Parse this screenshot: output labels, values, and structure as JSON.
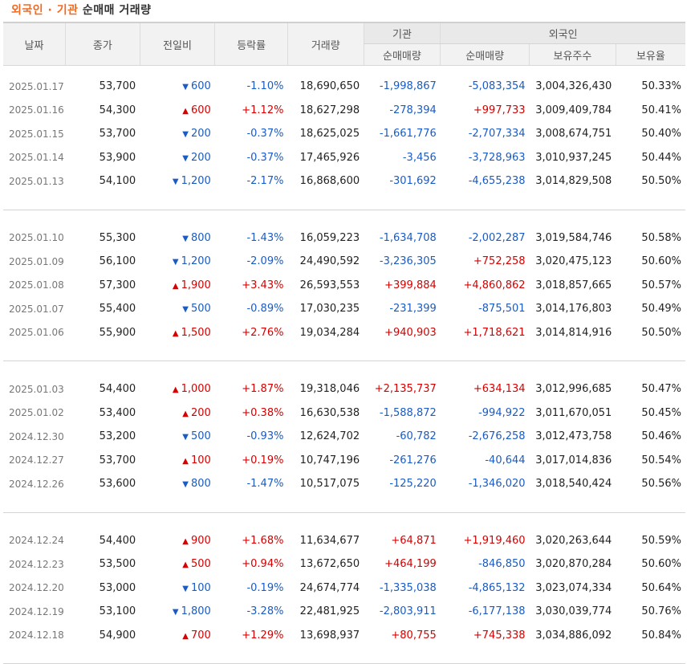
{
  "title": {
    "part1": "외국인",
    "dot": " · ",
    "part2": "기관",
    "rest": " 순매매 거래량"
  },
  "headers": {
    "date": "날짜",
    "close": "종가",
    "change": "전일비",
    "rate": "등락률",
    "volume": "거래량",
    "inst_group": "기관",
    "inst_net": "순매매량",
    "foreign_group": "외국인",
    "foreign_net": "순매매량",
    "foreign_holdings": "보유주수",
    "foreign_ratio": "보유율"
  },
  "colors": {
    "up": "#d60000",
    "down": "#1a5bc4",
    "accent": "#f26a21"
  },
  "groups": [
    [
      {
        "date": "2025.01.17",
        "close": "53,700",
        "dir": "down",
        "change": "600",
        "rate": "-1.10%",
        "volume": "18,690,650",
        "inst": "-1,998,867",
        "foreign": "-5,083,354",
        "holdings": "3,004,326,430",
        "ratio": "50.33%"
      },
      {
        "date": "2025.01.16",
        "close": "54,300",
        "dir": "up",
        "change": "600",
        "rate": "+1.12%",
        "volume": "18,627,298",
        "inst": "-278,394",
        "foreign": "+997,733",
        "holdings": "3,009,409,784",
        "ratio": "50.41%"
      },
      {
        "date": "2025.01.15",
        "close": "53,700",
        "dir": "down",
        "change": "200",
        "rate": "-0.37%",
        "volume": "18,625,025",
        "inst": "-1,661,776",
        "foreign": "-2,707,334",
        "holdings": "3,008,674,751",
        "ratio": "50.40%"
      },
      {
        "date": "2025.01.14",
        "close": "53,900",
        "dir": "down",
        "change": "200",
        "rate": "-0.37%",
        "volume": "17,465,926",
        "inst": "-3,456",
        "foreign": "-3,728,963",
        "holdings": "3,010,937,245",
        "ratio": "50.44%"
      },
      {
        "date": "2025.01.13",
        "close": "54,100",
        "dir": "down",
        "change": "1,200",
        "rate": "-2.17%",
        "volume": "16,868,600",
        "inst": "-301,692",
        "foreign": "-4,655,238",
        "holdings": "3,014,829,508",
        "ratio": "50.50%"
      }
    ],
    [
      {
        "date": "2025.01.10",
        "close": "55,300",
        "dir": "down",
        "change": "800",
        "rate": "-1.43%",
        "volume": "16,059,223",
        "inst": "-1,634,708",
        "foreign": "-2,002,287",
        "holdings": "3,019,584,746",
        "ratio": "50.58%"
      },
      {
        "date": "2025.01.09",
        "close": "56,100",
        "dir": "down",
        "change": "1,200",
        "rate": "-2.09%",
        "volume": "24,490,592",
        "inst": "-3,236,305",
        "foreign": "+752,258",
        "holdings": "3,020,475,123",
        "ratio": "50.60%"
      },
      {
        "date": "2025.01.08",
        "close": "57,300",
        "dir": "up",
        "change": "1,900",
        "rate": "+3.43%",
        "volume": "26,593,553",
        "inst": "+399,884",
        "foreign": "+4,860,862",
        "holdings": "3,018,857,665",
        "ratio": "50.57%"
      },
      {
        "date": "2025.01.07",
        "close": "55,400",
        "dir": "down",
        "change": "500",
        "rate": "-0.89%",
        "volume": "17,030,235",
        "inst": "-231,399",
        "foreign": "-875,501",
        "holdings": "3,014,176,803",
        "ratio": "50.49%"
      },
      {
        "date": "2025.01.06",
        "close": "55,900",
        "dir": "up",
        "change": "1,500",
        "rate": "+2.76%",
        "volume": "19,034,284",
        "inst": "+940,903",
        "foreign": "+1,718,621",
        "holdings": "3,014,814,916",
        "ratio": "50.50%"
      }
    ],
    [
      {
        "date": "2025.01.03",
        "close": "54,400",
        "dir": "up",
        "change": "1,000",
        "rate": "+1.87%",
        "volume": "19,318,046",
        "inst": "+2,135,737",
        "foreign": "+634,134",
        "holdings": "3,012,996,685",
        "ratio": "50.47%"
      },
      {
        "date": "2025.01.02",
        "close": "53,400",
        "dir": "up",
        "change": "200",
        "rate": "+0.38%",
        "volume": "16,630,538",
        "inst": "-1,588,872",
        "foreign": "-994,922",
        "holdings": "3,011,670,051",
        "ratio": "50.45%"
      },
      {
        "date": "2024.12.30",
        "close": "53,200",
        "dir": "down",
        "change": "500",
        "rate": "-0.93%",
        "volume": "12,624,702",
        "inst": "-60,782",
        "foreign": "-2,676,258",
        "holdings": "3,012,473,758",
        "ratio": "50.46%"
      },
      {
        "date": "2024.12.27",
        "close": "53,700",
        "dir": "up",
        "change": "100",
        "rate": "+0.19%",
        "volume": "10,747,196",
        "inst": "-261,276",
        "foreign": "-40,644",
        "holdings": "3,017,014,836",
        "ratio": "50.54%"
      },
      {
        "date": "2024.12.26",
        "close": "53,600",
        "dir": "down",
        "change": "800",
        "rate": "-1.47%",
        "volume": "10,517,075",
        "inst": "-125,220",
        "foreign": "-1,346,020",
        "holdings": "3,018,540,424",
        "ratio": "50.56%"
      }
    ],
    [
      {
        "date": "2024.12.24",
        "close": "54,400",
        "dir": "up",
        "change": "900",
        "rate": "+1.68%",
        "volume": "11,634,677",
        "inst": "+64,871",
        "foreign": "+1,919,460",
        "holdings": "3,020,263,644",
        "ratio": "50.59%"
      },
      {
        "date": "2024.12.23",
        "close": "53,500",
        "dir": "up",
        "change": "500",
        "rate": "+0.94%",
        "volume": "13,672,650",
        "inst": "+464,199",
        "foreign": "-846,850",
        "holdings": "3,020,870,284",
        "ratio": "50.60%"
      },
      {
        "date": "2024.12.20",
        "close": "53,000",
        "dir": "down",
        "change": "100",
        "rate": "-0.19%",
        "volume": "24,674,774",
        "inst": "-1,335,038",
        "foreign": "-4,865,132",
        "holdings": "3,023,074,334",
        "ratio": "50.64%"
      },
      {
        "date": "2024.12.19",
        "close": "53,100",
        "dir": "down",
        "change": "1,800",
        "rate": "-3.28%",
        "volume": "22,481,925",
        "inst": "-2,803,911",
        "foreign": "-6,177,138",
        "holdings": "3,030,039,774",
        "ratio": "50.76%"
      },
      {
        "date": "2024.12.18",
        "close": "54,900",
        "dir": "up",
        "change": "700",
        "rate": "+1.29%",
        "volume": "13,698,937",
        "inst": "+80,755",
        "foreign": "+745,338",
        "holdings": "3,034,886,092",
        "ratio": "50.84%"
      }
    ]
  ]
}
